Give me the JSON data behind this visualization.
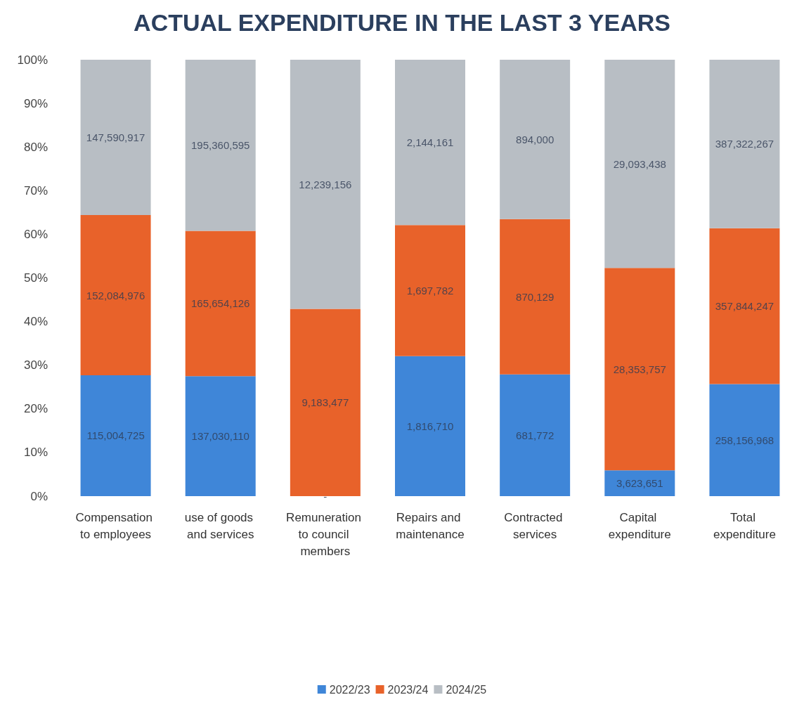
{
  "chart_data": {
    "type": "bar",
    "stacked": true,
    "title": "ACTUAL EXPENDITURE IN THE LAST 3 YEARS",
    "categories": [
      "Compensation to employees",
      "use of goods and services",
      "Remuneration to council members",
      "Repairs and maintenance",
      "Contracted services",
      "Capital expenditure",
      "Total expenditure"
    ],
    "series": [
      {
        "name": "2022/23",
        "color": "#3f86d8",
        "values": [
          27.7,
          27.5,
          0,
          32.1,
          27.9,
          5.9,
          25.7
        ]
      },
      {
        "name": "2023/24",
        "color": "#e8622a",
        "values": [
          36.7,
          33.3,
          42.9,
          30.0,
          35.6,
          46.4,
          35.7
        ]
      },
      {
        "name": "2024/25",
        "color": "#b8bec4",
        "values": [
          35.6,
          39.2,
          57.1,
          37.9,
          36.5,
          47.7,
          38.6
        ]
      }
    ],
    "annotations": [
      "115,004,725",
      "152,084,976",
      "147,590,917",
      "137,030,110",
      "165,654,126",
      "195,360,595",
      "-",
      "9,183,477",
      "12,239,156",
      "1,816,710",
      "1,697,782",
      "2,144,161",
      "681,772",
      "870,129",
      "894,000",
      "3,623,651",
      "28,353,757",
      "29,093,438",
      "258,156,968",
      "357,844,247",
      "387,322,267"
    ],
    "ylim": [
      0,
      100
    ],
    "yticks": [
      {
        "value": 0,
        "label": "0%"
      },
      {
        "value": 10,
        "label": "10%"
      },
      {
        "value": 20,
        "label": "20%"
      },
      {
        "value": 30,
        "label": "30%"
      },
      {
        "value": 40,
        "label": "40%"
      },
      {
        "value": 50,
        "label": "50%"
      },
      {
        "value": 60,
        "label": "60%"
      },
      {
        "value": 70,
        "label": "70%"
      },
      {
        "value": 80,
        "label": "80%"
      },
      {
        "value": 90,
        "label": "90%"
      },
      {
        "value": 100,
        "label": "100%"
      }
    ],
    "grid": false,
    "legend": "bottom"
  }
}
